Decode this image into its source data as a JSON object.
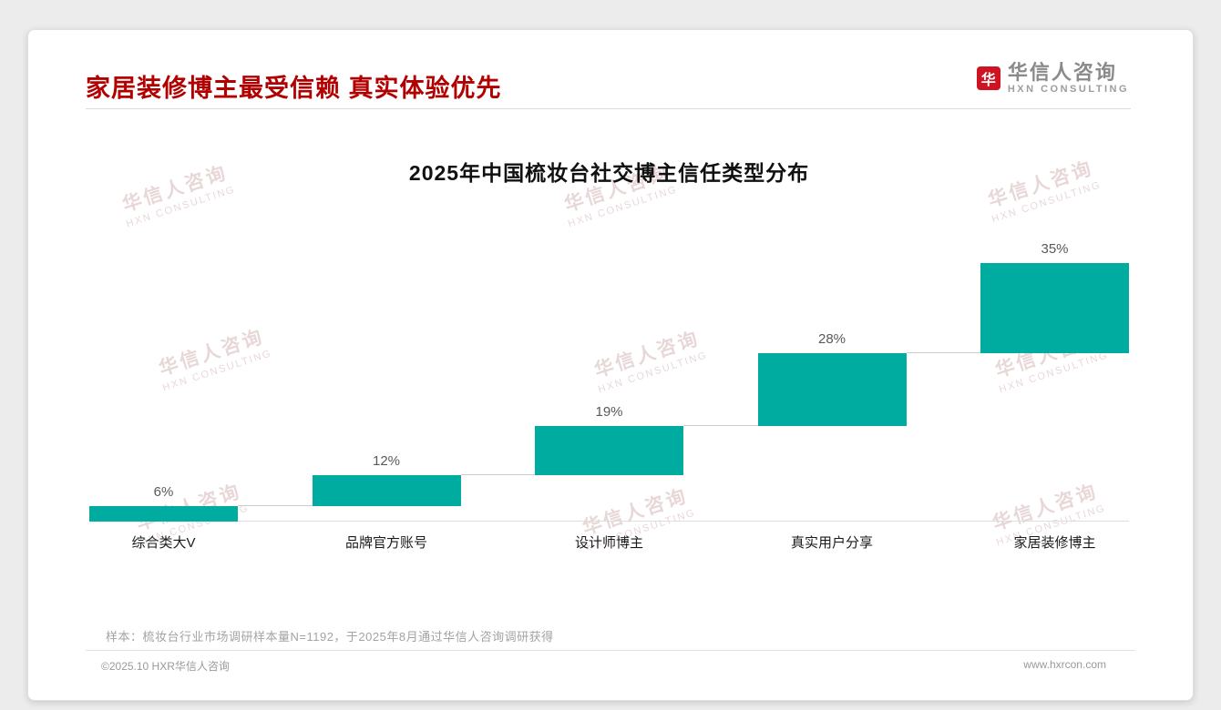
{
  "header": {
    "title": "家居装修博主最受信赖 真实体验优先"
  },
  "logo": {
    "icon_text": "华",
    "name_cn": "华信人咨询",
    "name_en": "HXN CONSULTING"
  },
  "chart_data": {
    "type": "bar",
    "variant": "waterfall",
    "title": "2025年中国梳妆台社交博主信任类型分布",
    "categories": [
      "综合类大V",
      "品牌官方账号",
      "设计师博主",
      "真实用户分享",
      "家居装修博主"
    ],
    "values": [
      6,
      12,
      19,
      28,
      35
    ],
    "labels": [
      "6%",
      "12%",
      "19%",
      "28%",
      "35%"
    ],
    "cumulative": [
      6,
      18,
      37,
      65,
      100
    ],
    "unit": "%",
    "ylim": [
      0,
      100
    ],
    "bar_color": "#00aca0",
    "grid": false,
    "legend": false
  },
  "watermark": {
    "line1": "华信人咨询",
    "line2": "HXN CONSULTING"
  },
  "footnote": "样本：梳妆台行业市场调研样本量N=1192，于2025年8月通过华信人咨询调研获得",
  "footer": {
    "left": "©2025.10 HXR华信人咨询",
    "right": "www.hxrcon.com"
  }
}
